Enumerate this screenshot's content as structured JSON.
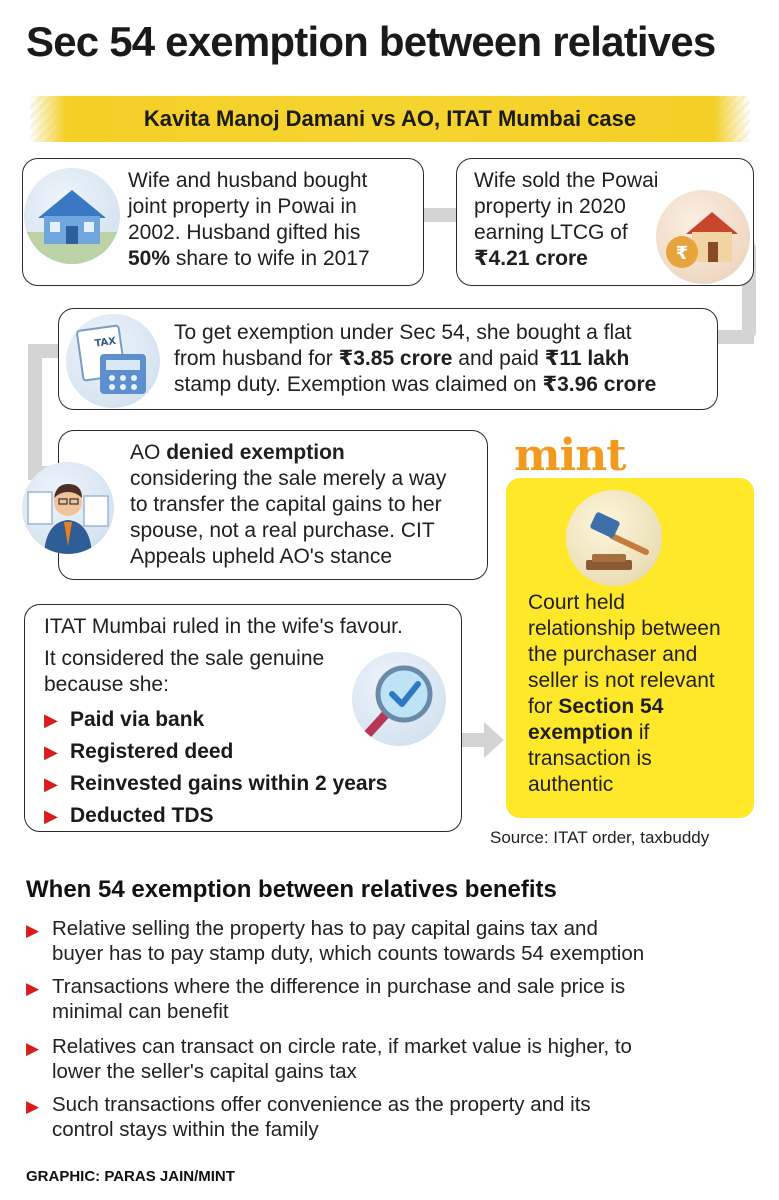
{
  "title": "Sec 54 exemption between relatives",
  "subtitle": "Kavita Manoj Damani vs AO, ITAT Mumbai case",
  "card1": {
    "line1": "Wife and husband bought",
    "line2": "joint property in Powai in",
    "line3": "2002. Husband gifted his",
    "line4_bold": "50%",
    "line4_rest": " share to wife in 2017",
    "icon": "house-icon"
  },
  "card2": {
    "line1": "Wife sold the Powai",
    "line2": "property in 2020",
    "line3": "earning LTCG of",
    "line4_bold": "₹4.21 crore",
    "icon": "house-rupee-icon"
  },
  "card3": {
    "line1": "To get exemption under Sec 54, she bought a flat",
    "line2_pre": "from husband for ",
    "line2_bold1": "₹3.85 crore",
    "line2_mid": " and paid ",
    "line2_bold2": "₹11 lakh",
    "line3_pre": "stamp duty. Exemption was claimed on ",
    "line3_bold": "₹3.96 crore",
    "icon": "tax-calculator-icon",
    "icon_label": "TAX"
  },
  "card4": {
    "line1_pre": "AO ",
    "line1_bold": "denied exemption",
    "line2": "considering the sale merely a way",
    "line3": "to transfer the capital gains to her",
    "line4": "spouse, not a real purchase. CIT",
    "line5": "Appeals upheld AO's stance",
    "icon": "businessman-icon"
  },
  "card5": {
    "line1": "ITAT Mumbai ruled in the wife's favour.",
    "line2": "It considered the sale genuine",
    "line3": "because she:",
    "items": [
      "Paid via bank",
      "Registered deed",
      "Reinvested gains within 2 years",
      "Deducted TDS"
    ],
    "icon": "magnifier-check-icon"
  },
  "brand": "mint",
  "court": {
    "line1": "Court held",
    "line2": "relationship between",
    "line3": "the purchaser and",
    "line4": "seller is not relevant",
    "line5_pre": "for ",
    "line5_bold": "Section 54",
    "line6_bold": "exemption",
    "line6_rest": " if",
    "line7": "transaction is",
    "line8": "authentic",
    "icon": "gavel-icon"
  },
  "source": "Source: ITAT order, taxbuddy",
  "benefits": {
    "title": "When 54 exemption between relatives benefits",
    "items": [
      {
        "l1": "Relative selling the property has to pay capital gains tax and",
        "l2": "buyer has to pay stamp duty, which counts towards 54 exemption"
      },
      {
        "l1": "Transactions where the difference in purchase and sale price is",
        "l2": "minimal can benefit"
      },
      {
        "l1": "Relatives can transact on circle rate, if market value is higher, to",
        "l2": "lower the seller's capital gains tax"
      },
      {
        "l1": "Such transactions offer convenience as the property and its",
        "l2": "control stays within the family"
      }
    ]
  },
  "credit": "GRAPHIC: PARAS JAIN/MINT",
  "colors": {
    "accent_yellow": "#ffe82a",
    "band_yellow": "#f6d430",
    "bullet_red": "#d81c1c",
    "mint_orange": "#f39a1e"
  }
}
